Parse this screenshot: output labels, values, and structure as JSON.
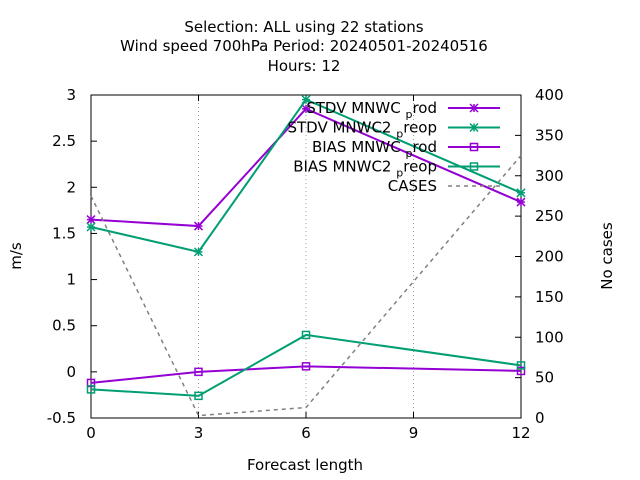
{
  "title": {
    "line1": "Selection: ALL using    22 stations",
    "line2": "Wind speed 700hPa   Period: 20240501-20240516",
    "line3": "Hours:  12"
  },
  "chart_data": {
    "type": "line",
    "xlabel": "Forecast length",
    "ylabel": "m/s",
    "y2label": "No cases",
    "x": [
      0,
      3,
      6,
      9,
      12
    ],
    "xticks": [
      "0",
      "3",
      "6",
      "9",
      "12"
    ],
    "xlim": [
      0,
      12
    ],
    "ylim": [
      -0.5,
      3
    ],
    "yticks": [
      "-0.5",
      "0",
      "0.5",
      "1",
      "1.5",
      "2",
      "2.5",
      "3"
    ],
    "y2lim": [
      0,
      400
    ],
    "y2ticks": [
      "0",
      "50",
      "100",
      "150",
      "200",
      "250",
      "300",
      "350",
      "400"
    ],
    "grid": true,
    "legend_position": "top-right",
    "series": [
      {
        "name": "STDV MNWC",
        "name_sub": "p",
        "name_suffix": "rod",
        "axis": "y1",
        "color": "#9400d3",
        "marker": "x",
        "points": [
          [
            0,
            1.65
          ],
          [
            3,
            1.58
          ],
          [
            6,
            2.85
          ],
          [
            12,
            1.84
          ]
        ]
      },
      {
        "name": "STDV MNWC2",
        "name_sub": "p",
        "name_suffix": "reop",
        "axis": "y1",
        "color": "#009e73",
        "marker": "x",
        "points": [
          [
            0,
            1.57
          ],
          [
            3,
            1.3
          ],
          [
            6,
            2.95
          ],
          [
            12,
            1.94
          ]
        ]
      },
      {
        "name": "BIAS MNWC",
        "name_sub": "p",
        "name_suffix": "rod",
        "axis": "y1",
        "color": "#9400d3",
        "marker": "square",
        "points": [
          [
            0,
            -0.12
          ],
          [
            3,
            0.0
          ],
          [
            6,
            0.06
          ],
          [
            12,
            0.01
          ]
        ]
      },
      {
        "name": "BIAS MNWC2",
        "name_sub": "p",
        "name_suffix": "reop",
        "axis": "y1",
        "color": "#009e73",
        "marker": "square",
        "points": [
          [
            0,
            -0.19
          ],
          [
            3,
            -0.26
          ],
          [
            6,
            0.4
          ],
          [
            12,
            0.07
          ]
        ]
      },
      {
        "name": "CASES",
        "name_sub": "",
        "name_suffix": "",
        "axis": "y2",
        "color": "#808080",
        "marker": "none",
        "dashed": true,
        "points": [
          [
            0,
            275
          ],
          [
            3,
            3
          ],
          [
            6,
            13
          ],
          [
            12,
            325
          ]
        ]
      }
    ]
  }
}
